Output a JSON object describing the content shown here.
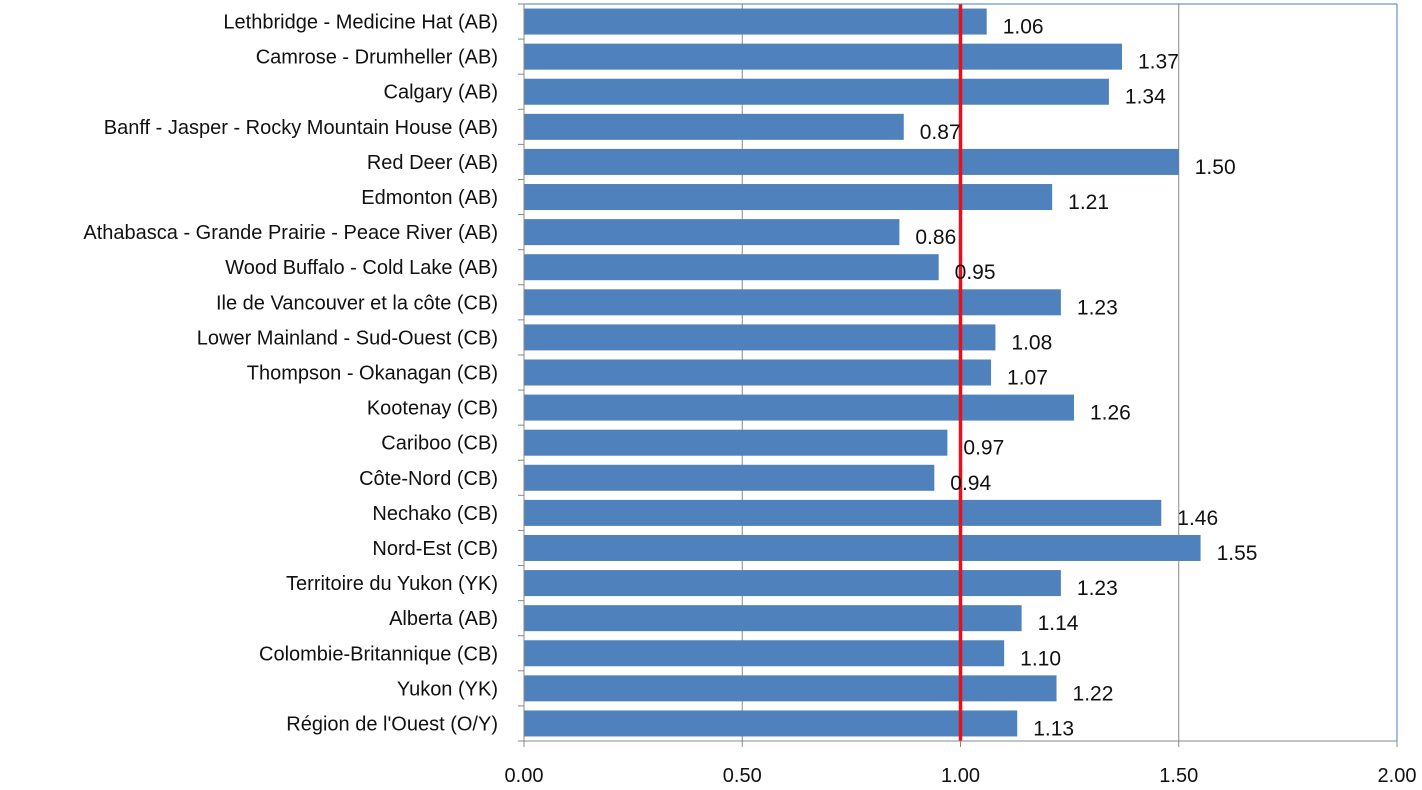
{
  "chart_data": {
    "type": "bar",
    "orientation": "horizontal",
    "title": "",
    "xlabel": "",
    "ylabel": "",
    "xlim": [
      0,
      2
    ],
    "x_ticks": [
      "0.00",
      "0.50",
      "1.00",
      "1.50",
      "2.00"
    ],
    "grid": "vertical",
    "categories": [
      "Lethbridge - Medicine Hat (AB)",
      "Camrose - Drumheller (AB)",
      "Calgary (AB)",
      "Banff - Jasper - Rocky Mountain House (AB)",
      "Red Deer (AB)",
      "Edmonton (AB)",
      "Athabasca - Grande Prairie - Peace River (AB)",
      "Wood Buffalo - Cold Lake (AB)",
      "Ile de Vancouver et la côte (CB)",
      "Lower Mainland - Sud-Ouest (CB)",
      "Thompson - Okanagan (CB)",
      "Kootenay (CB)",
      "Cariboo (CB)",
      "Côte-Nord (CB)",
      "Nechako (CB)",
      "Nord-Est (CB)",
      "Territoire du Yukon (YK)",
      "Alberta (AB)",
      "Colombie-Britannique (CB)",
      "Yukon (YK)",
      "Région de l'Ouest (O/Y)"
    ],
    "values": [
      1.06,
      1.37,
      1.34,
      0.87,
      1.5,
      1.21,
      0.86,
      0.95,
      1.23,
      1.08,
      1.07,
      1.26,
      0.97,
      0.94,
      1.46,
      1.55,
      1.23,
      1.14,
      1.1,
      1.22,
      1.13
    ],
    "value_labels": [
      "1.06",
      "1.37",
      "1.34",
      "0.87",
      "1.50",
      "1.21",
      "0.86",
      "0.95",
      "1.23",
      "1.08",
      "1.07",
      "1.26",
      "0.97",
      "0.94",
      "1.46",
      "1.55",
      "1.23",
      "1.14",
      "1.10",
      "1.22",
      "1.13"
    ],
    "reference_line": {
      "value": 1.0,
      "color": "#e8111b"
    },
    "colors": {
      "bar": "#4f81bd",
      "grid": "#888888",
      "frame": "#4a7ebb"
    }
  }
}
